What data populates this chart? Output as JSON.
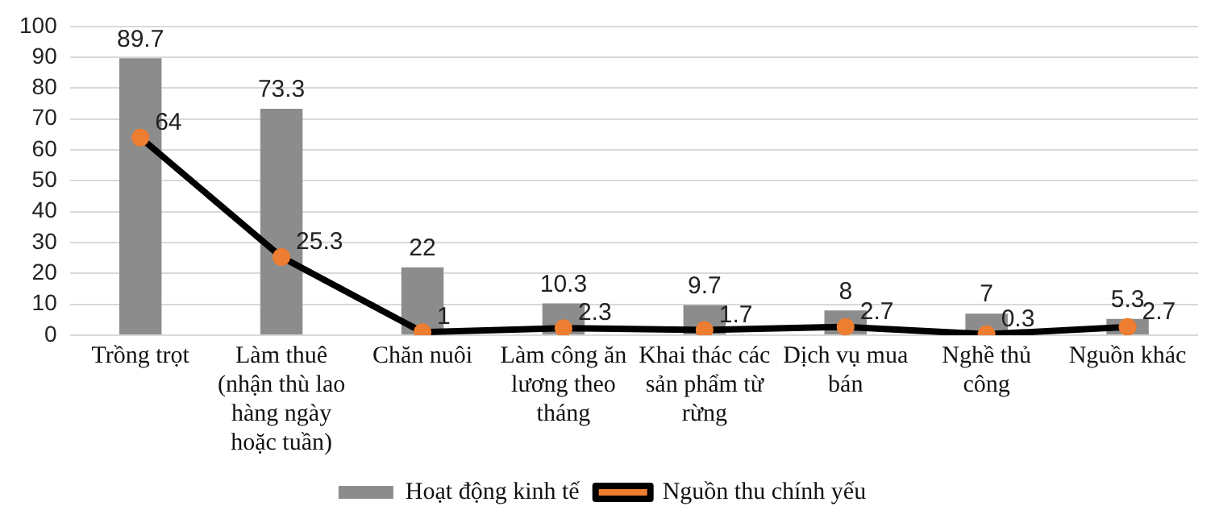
{
  "chart_data": {
    "type": "bar",
    "categories": [
      "Trồng trọt",
      "Làm thuê (nhận thù lao hàng ngày hoặc tuần)",
      "Chăn nuôi",
      "Làm công ăn lương theo tháng",
      "Khai thác các sản phẩm từ rừng",
      "Dịch vụ mua bán",
      "Nghề thủ công",
      "Nguồn khác"
    ],
    "series": [
      {
        "name": "Hoạt động kinh tế",
        "color": "#8c8c8c",
        "values": [
          89.7,
          73.3,
          22,
          10.3,
          9.7,
          8,
          7,
          5.3
        ]
      },
      {
        "name": "Nguồn thu chính yếu",
        "type": "line",
        "color": "#000000",
        "values": [
          64,
          25.3,
          1,
          2.3,
          1.7,
          2.7,
          0.3,
          2.7
        ]
      }
    ],
    "ylim": [
      0,
      100
    ],
    "yticks": [
      0,
      10,
      20,
      30,
      40,
      50,
      60,
      70,
      80,
      90,
      100
    ],
    "grid": "y",
    "legend": "bottom",
    "data_labels": true,
    "marker": "circle",
    "line_style": "solid"
  }
}
